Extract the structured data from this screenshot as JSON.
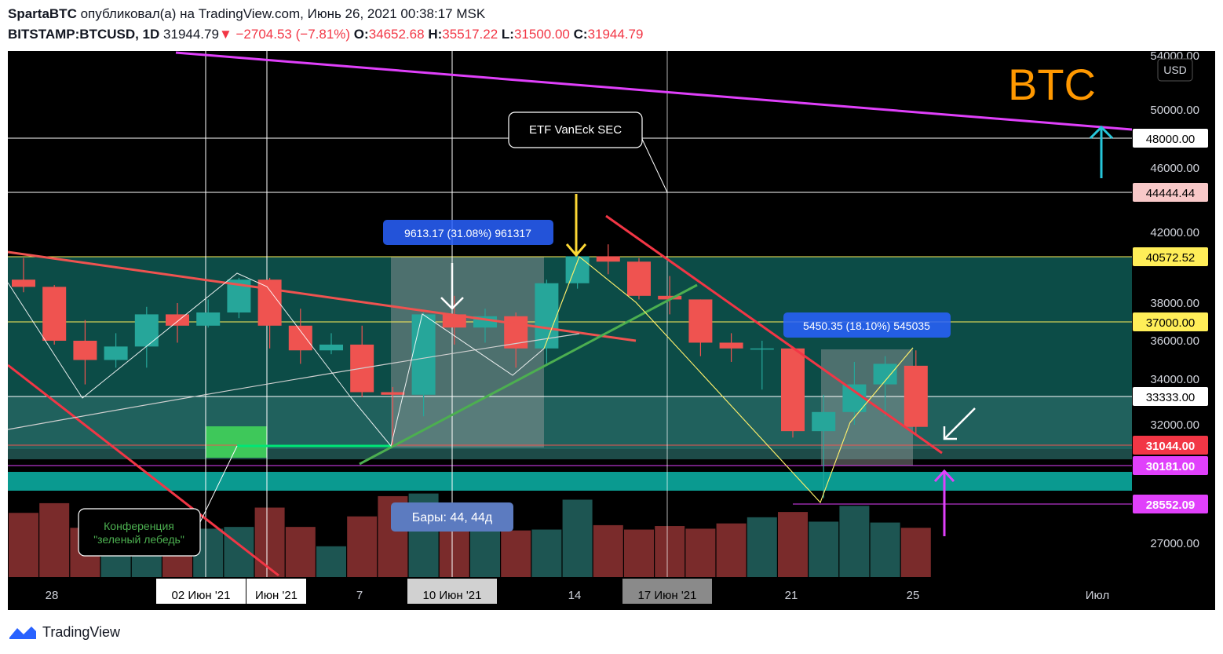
{
  "header": {
    "author": "SpartaBTC",
    "published": "опубликовал(а) на TradingView.com, Июнь 26, 2021 00:38:17 MSK",
    "symbol": "BITSTAMP:BTCUSD, 1D",
    "last": "31944.79",
    "change": "−2704.53 (−7.81%)",
    "o_label": "O:",
    "o_val": "34652.68",
    "h_label": "H:",
    "h_val": "35517.22",
    "l_label": "L:",
    "l_val": "31500.00",
    "c_label": "C:",
    "c_val": "31944.79"
  },
  "footer": {
    "brand": "TradingView"
  },
  "colors": {
    "up": "#26a69a",
    "down": "#ef5350",
    "bg": "#000000"
  },
  "chart_data": {
    "type": "candlestick",
    "title": "BTC",
    "currency": "USD",
    "y_ticks": [
      54000,
      50000,
      46000,
      42000,
      38000,
      36000,
      34000,
      32000,
      27000
    ],
    "y_tick_labels": [
      "54000.00",
      "50000.00",
      "46000.00",
      "42000.00",
      "38000.00",
      "36000.00",
      "34000.00",
      "32000.00",
      "27000.00"
    ],
    "x_labels": [
      "28",
      "02 Июн '21",
      "Июн '21",
      "7",
      "10 Июн '21",
      "14",
      "17 Июн '21",
      "21",
      "25",
      "Июл"
    ],
    "price_marks": [
      {
        "label": "48000.00",
        "bg": "#ffffff",
        "fg": "#000000"
      },
      {
        "label": "44444.44",
        "bg": "#f8c8c8",
        "fg": "#000000"
      },
      {
        "label": "40572.52",
        "bg": "#ffee58",
        "fg": "#000000"
      },
      {
        "label": "37000.00",
        "bg": "#ffee58",
        "fg": "#000000"
      },
      {
        "label": "33333.00",
        "bg": "#ffffff",
        "fg": "#000000"
      },
      {
        "label": "31044.00",
        "bg": "#f23645",
        "fg": "#ffffff"
      },
      {
        "label": "30181.00",
        "bg": "#e040fb",
        "fg": "#ffffff"
      },
      {
        "label": "28552.09",
        "bg": "#e040fb",
        "fg": "#ffffff"
      }
    ],
    "candles": [
      {
        "date": "27 May",
        "o": 39300,
        "h": 40500,
        "l": 38600,
        "c": 38900
      },
      {
        "date": "28 May",
        "o": 38900,
        "h": 39000,
        "l": 35800,
        "c": 36000
      },
      {
        "date": "29 May",
        "o": 36000,
        "h": 37100,
        "l": 33800,
        "c": 35000
      },
      {
        "date": "30 May",
        "o": 35000,
        "h": 36400,
        "l": 34600,
        "c": 35700
      },
      {
        "date": "31 May",
        "o": 35700,
        "h": 37800,
        "l": 34600,
        "c": 37400
      },
      {
        "date": "01 Jun",
        "o": 37400,
        "h": 38000,
        "l": 35900,
        "c": 36800
      },
      {
        "date": "02 Jun",
        "o": 36800,
        "h": 38200,
        "l": 36700,
        "c": 37500
      },
      {
        "date": "03 Jun",
        "o": 37500,
        "h": 39400,
        "l": 37200,
        "c": 39300
      },
      {
        "date": "04 Jun",
        "o": 39300,
        "h": 39400,
        "l": 35600,
        "c": 36800
      },
      {
        "date": "05 Jun",
        "o": 36800,
        "h": 37700,
        "l": 34800,
        "c": 35500
      },
      {
        "date": "06 Jun",
        "o": 35500,
        "h": 36400,
        "l": 35300,
        "c": 35800
      },
      {
        "date": "07 Jun",
        "o": 35800,
        "h": 36800,
        "l": 33300,
        "c": 33500
      },
      {
        "date": "08 Jun",
        "o": 33500,
        "h": 33700,
        "l": 31000,
        "c": 33400
      },
      {
        "date": "09 Jun",
        "o": 33400,
        "h": 37500,
        "l": 32400,
        "c": 37400
      },
      {
        "date": "10 Jun",
        "o": 37400,
        "h": 38400,
        "l": 35800,
        "c": 36700
      },
      {
        "date": "11 Jun",
        "o": 36700,
        "h": 37700,
        "l": 35900,
        "c": 37300
      },
      {
        "date": "12 Jun",
        "o": 37300,
        "h": 37500,
        "l": 34600,
        "c": 35600
      },
      {
        "date": "13 Jun",
        "o": 35600,
        "h": 39300,
        "l": 34800,
        "c": 39100
      },
      {
        "date": "14 Jun",
        "o": 39100,
        "h": 40900,
        "l": 38800,
        "c": 40600
      },
      {
        "date": "15 Jun",
        "o": 40600,
        "h": 41300,
        "l": 39600,
        "c": 40300
      },
      {
        "date": "16 Jun",
        "o": 40300,
        "h": 40500,
        "l": 38200,
        "c": 38400
      },
      {
        "date": "17 Jun",
        "o": 38400,
        "h": 39500,
        "l": 37400,
        "c": 38200
      },
      {
        "date": "18 Jun",
        "o": 38200,
        "h": 38200,
        "l": 35200,
        "c": 35900
      },
      {
        "date": "19 Jun",
        "o": 35900,
        "h": 36400,
        "l": 34900,
        "c": 35600
      },
      {
        "date": "20 Jun",
        "o": 35600,
        "h": 36000,
        "l": 33600,
        "c": 35600
      },
      {
        "date": "21 Jun",
        "o": 35600,
        "h": 35700,
        "l": 31400,
        "c": 31700
      },
      {
        "date": "22 Jun",
        "o": 31700,
        "h": 33400,
        "l": 28800,
        "c": 32600
      },
      {
        "date": "23 Jun",
        "o": 32600,
        "h": 34900,
        "l": 32000,
        "c": 33800
      },
      {
        "date": "24 Jun",
        "o": 33800,
        "h": 35200,
        "l": 32400,
        "c": 34800
      },
      {
        "date": "25 Jun",
        "o": 34700,
        "h": 35500,
        "l": 31500,
        "c": 31900
      }
    ],
    "volumes": [
      0.73,
      0.84,
      0.56,
      0.73,
      0.51,
      0.59,
      0.55,
      0.57,
      0.79,
      0.57,
      0.35,
      0.69,
      0.92,
      0.95,
      0.81,
      0.8,
      0.53,
      0.54,
      0.88,
      0.59,
      0.54,
      0.58,
      0.55,
      0.61,
      0.68,
      0.74,
      0.63,
      0.81,
      0.62,
      0.56
    ],
    "annotations": {
      "range_label_1": "9613.17 (31.08%) 961317",
      "range_label_2": "5450.35 (18.10%) 545035",
      "bars_label": "Бары: 44, 44д",
      "etf_note": "ETF VanEck  SEC",
      "conf_line1": "Конференция",
      "conf_line2": "\"зеленый лебедь\""
    }
  }
}
